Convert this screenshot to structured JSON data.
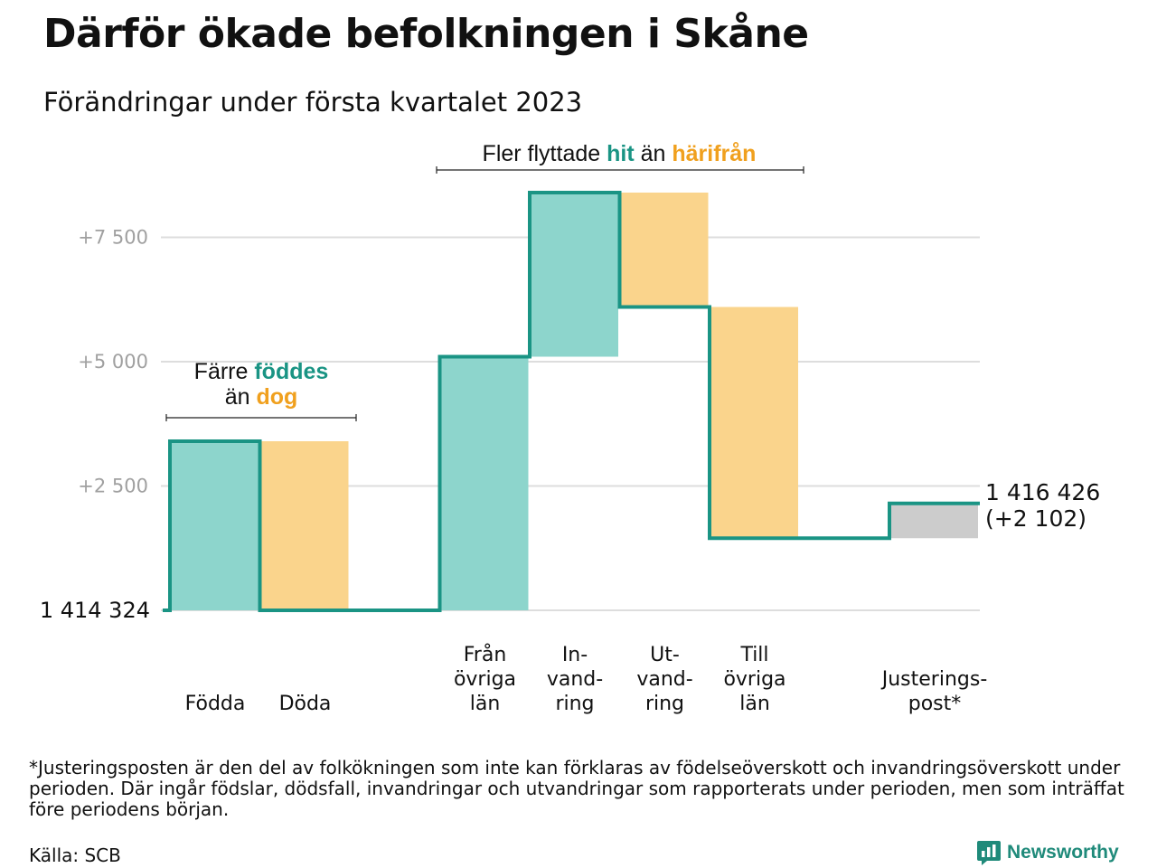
{
  "title": "Därför ökade befolkningen i Skåne",
  "subtitle": "Förändringar under första kvartalet 2023",
  "chart_data": {
    "type": "waterfall",
    "baseline_label": "1 414 324",
    "end_label_lines": [
      "1 416 426",
      "(+2 102)"
    ],
    "ylim": [
      0,
      8700
    ],
    "y_ticks": [
      {
        "value": 2500,
        "label": "+2 500"
      },
      {
        "value": 5000,
        "label": "+5 000"
      },
      {
        "value": 7500,
        "label": "+7 500"
      }
    ],
    "steps": [
      {
        "label_lines": [
          "Födda"
        ],
        "value": 3400,
        "kind": "inflow"
      },
      {
        "label_lines": [
          "Döda"
        ],
        "value": -3400,
        "kind": "outflow"
      },
      {
        "label_lines": [],
        "value": 0,
        "kind": "gap"
      },
      {
        "label_lines": [
          "Från",
          "övriga",
          "län"
        ],
        "value": 5100,
        "kind": "inflow"
      },
      {
        "label_lines": [
          "In-",
          "vand-",
          "ring"
        ],
        "value": 3300,
        "kind": "inflow"
      },
      {
        "label_lines": [
          "Ut-",
          "vand-",
          "ring"
        ],
        "value": -2300,
        "kind": "outflow"
      },
      {
        "label_lines": [
          "Till",
          "övriga",
          "län"
        ],
        "value": -4650,
        "kind": "outflow"
      },
      {
        "label_lines": [],
        "value": 0,
        "kind": "gap"
      },
      {
        "label_lines": [
          "Justerings-",
          "post*"
        ],
        "value": 700,
        "kind": "adjustment"
      }
    ],
    "annotations": [
      {
        "id": "births",
        "lines": [
          [
            {
              "text": "Färre ",
              "tone": "plain"
            },
            {
              "text": "föddes",
              "tone": "inflow"
            }
          ],
          [
            {
              "text": "än ",
              "tone": "plain"
            },
            {
              "text": "dog",
              "tone": "outflow"
            }
          ]
        ]
      },
      {
        "id": "migration",
        "lines": [
          [
            {
              "text": "Fler flyttade ",
              "tone": "plain"
            },
            {
              "text": "hit",
              "tone": "inflow"
            },
            {
              "text": " än ",
              "tone": "plain"
            },
            {
              "text": "härifrån",
              "tone": "outflow"
            }
          ]
        ]
      }
    ],
    "colors": {
      "inflow_fill": "#8dd5cc",
      "outflow_fill": "#fad48c",
      "adjustment_fill": "#cccccc",
      "line": "#1a9484",
      "inflow_text": "#1a9484",
      "outflow_text": "#f0a01e",
      "grid": "#dddddd",
      "tick_text": "#a0a0a0"
    }
  },
  "footnote": "*Justeringsposten är den del av folkökningen som inte kan förklaras av födelseöverskott och invandringsöverskott under perioden. Där ingår födslar, dödsfall, invandringar och utvandringar som rapporterats under perioden, men som inträffat före periodens början.",
  "source": "Källa: SCB",
  "logo": {
    "text": "Newsworthy",
    "icon": "bar-chart-speech-icon"
  }
}
